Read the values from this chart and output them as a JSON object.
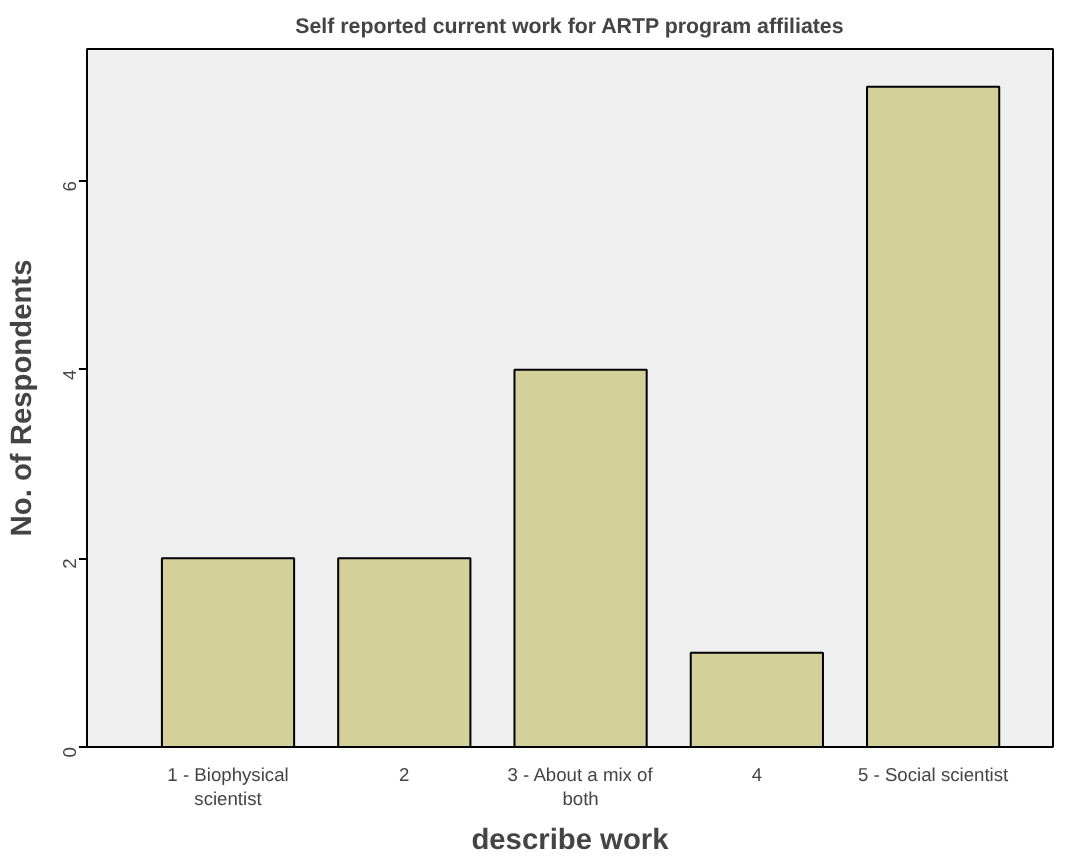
{
  "chart_data": {
    "type": "bar",
    "title": "Self reported current work for ARTP program affiliates",
    "xlabel": "describe work",
    "ylabel": "No. of Respondents",
    "categories": [
      "1 - Biophysical scientist",
      "2",
      "3 - About a mix of both",
      "4",
      "5 - Social scientist"
    ],
    "values": [
      2,
      2,
      4,
      1,
      7
    ],
    "color": "#d4d09a",
    "ylim": [
      0,
      7.4
    ],
    "yticks": [
      0,
      2,
      4,
      6
    ],
    "grid": false
  }
}
